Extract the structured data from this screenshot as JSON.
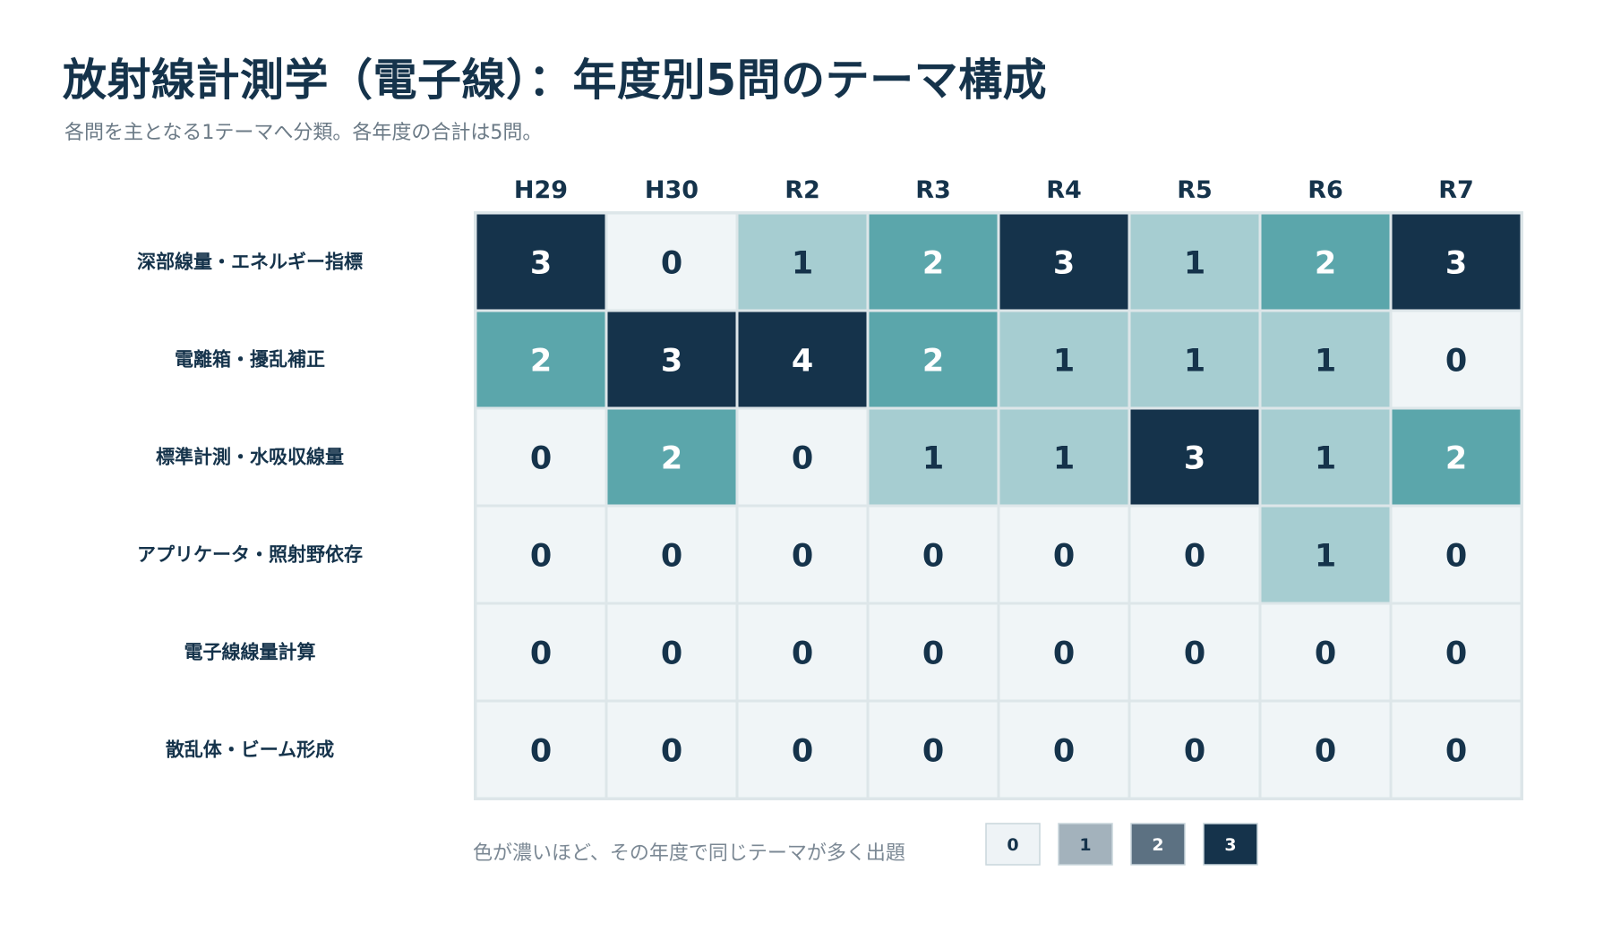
{
  "title": "放射線計測学（電子線）：年度別5問のテーマ構成",
  "subtitle": "各問を主となる1テーマへ分類。各年度の合計は5問。",
  "chart_data": {
    "type": "heatmap",
    "columns": [
      "H29",
      "H30",
      "R2",
      "R3",
      "R4",
      "R5",
      "R6",
      "R7"
    ],
    "rows": [
      "深部線量・エネルギー指標",
      "電離箱・擾乱補正",
      "標準計測・水吸収線量",
      "アプリケータ・照射野依存",
      "電子線線量計算",
      "散乱体・ビーム形成"
    ],
    "values": [
      [
        3,
        0,
        1,
        2,
        3,
        1,
        2,
        3
      ],
      [
        2,
        3,
        4,
        2,
        1,
        1,
        1,
        0
      ],
      [
        0,
        2,
        0,
        1,
        1,
        3,
        1,
        2
      ],
      [
        0,
        0,
        0,
        0,
        0,
        0,
        1,
        0
      ],
      [
        0,
        0,
        0,
        0,
        0,
        0,
        0,
        0
      ],
      [
        0,
        0,
        0,
        0,
        0,
        0,
        0,
        0
      ]
    ],
    "cell_colors": {
      "0": "#f0f5f7",
      "1": "#a6cdd1",
      "2": "#5ba6ab",
      "3": "#15334b",
      "4": "#15334b"
    },
    "legend": {
      "text": "色が濃いほど、その年度で同じテーマが多く出題",
      "levels": [
        {
          "label": "0",
          "color": "#eef3f6"
        },
        {
          "label": "1",
          "color": "#a3b2bc"
        },
        {
          "label": "2",
          "color": "#5c7182"
        },
        {
          "label": "3",
          "color": "#15334b"
        }
      ]
    }
  }
}
